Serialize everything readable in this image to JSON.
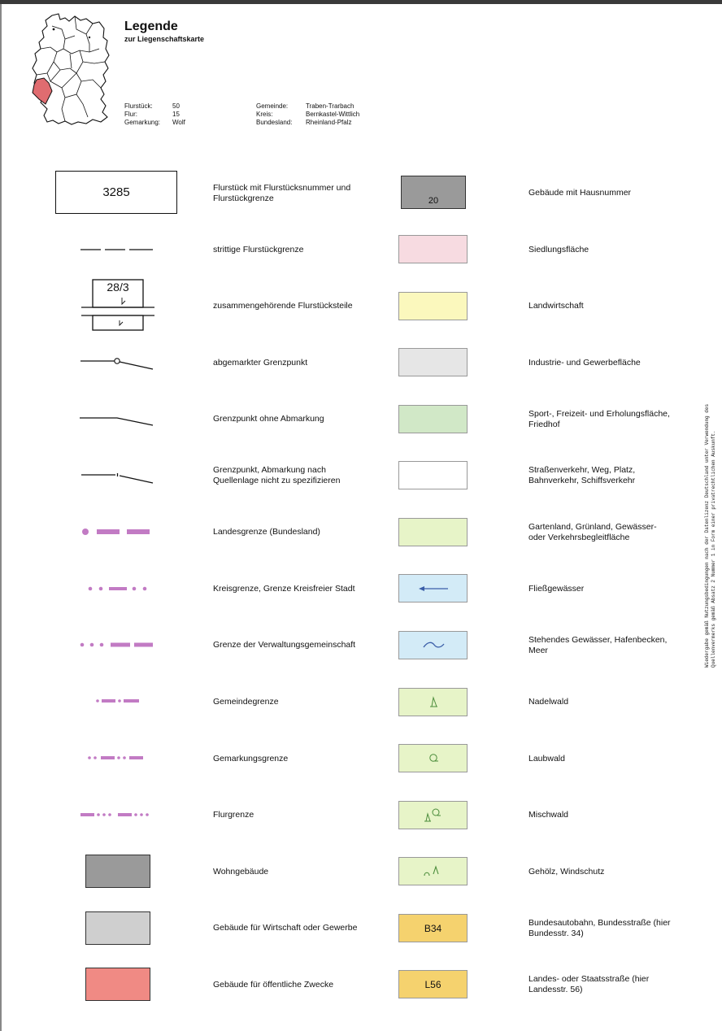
{
  "header": {
    "title": "Legende",
    "subtitle": "zur Liegenschaftskarte",
    "left_meta": [
      {
        "label": "Flurstück:",
        "value": "50"
      },
      {
        "label": "Flur:",
        "value": "15"
      },
      {
        "label": "Gemarkung:",
        "value": "Wolf"
      }
    ],
    "right_meta": [
      {
        "label": "Gemeinde:",
        "value": "Traben-Trarbach"
      },
      {
        "label": "Kreis:",
        "value": "Bernkastel-Wittlich"
      },
      {
        "label": "Bundesland:",
        "value": "Rheinland-Pfalz"
      }
    ]
  },
  "legend_left": [
    {
      "symbol": "parcel-box",
      "symbol_text": "3285",
      "label": "Flurstück mit Flurstücksnummer und Flurstückgrenze"
    },
    {
      "symbol": "disputed-line",
      "label": "strittige Flurstückgrenze"
    },
    {
      "symbol": "combined-parcel",
      "symbol_text": "28/3",
      "label": "zusammengehörende Flurstücksteile"
    },
    {
      "symbol": "marked-point",
      "label": "abgemarkter Grenzpunkt"
    },
    {
      "symbol": "unmarked-point",
      "label": "Grenzpunkt ohne Abmarkung"
    },
    {
      "symbol": "unspecified-point",
      "label": "Grenzpunkt, Abmarkung nach Quellenlage nicht zu spezifizieren"
    },
    {
      "symbol": "state-border",
      "label": "Landesgrenze (Bundesland)"
    },
    {
      "symbol": "district-border",
      "label": "Kreisgrenze, Grenze Kreisfreier Stadt"
    },
    {
      "symbol": "admin-border",
      "label": "Grenze der Verwaltungsgemeinschaft"
    },
    {
      "symbol": "municipal-border",
      "label": "Gemeindegrenze"
    },
    {
      "symbol": "cadastral-border",
      "label": "Gemarkungsgrenze"
    },
    {
      "symbol": "field-border",
      "label": "Flurgrenze"
    },
    {
      "symbol": "residential-building",
      "label": "Wohngebäude"
    },
    {
      "symbol": "commercial-building",
      "label": "Gebäude für Wirtschaft oder Gewerbe"
    },
    {
      "symbol": "public-building",
      "label": "Gebäude für öffentliche Zwecke"
    }
  ],
  "legend_right": [
    {
      "symbol": "building-number",
      "symbol_text": "20",
      "label": "Gebäude mit Hausnummer"
    },
    {
      "symbol": "settlement-area",
      "label": "Siedlungsfläche"
    },
    {
      "symbol": "agriculture",
      "label": "Landwirtschaft"
    },
    {
      "symbol": "industry",
      "label": "Industrie- und Gewerbefläche"
    },
    {
      "symbol": "recreation",
      "label": "Sport-, Freizeit- und Erholungsfläche, Friedhof"
    },
    {
      "symbol": "traffic",
      "label": "Straßenverkehr, Weg, Platz, Bahnverkehr, Schiffsverkehr"
    },
    {
      "symbol": "garden",
      "label": "Gartenland, Grünland, Gewässer- oder Verkehrsbegleitfläche"
    },
    {
      "symbol": "flowing-water",
      "label": "Fließgewässer"
    },
    {
      "symbol": "standing-water",
      "label": "Stehendes Gewässer, Hafenbecken, Meer"
    },
    {
      "symbol": "conifer-forest",
      "label": "Nadelwald"
    },
    {
      "symbol": "deciduous-forest",
      "label": "Laubwald"
    },
    {
      "symbol": "mixed-forest",
      "label": "Mischwald"
    },
    {
      "symbol": "shrubs",
      "label": "Gehölz, Windschutz"
    },
    {
      "symbol": "federal-road",
      "symbol_text": "B34",
      "label": "Bundesautobahn, Bundesstraße (hier Bundesstr. 34)"
    },
    {
      "symbol": "state-road",
      "symbol_text": "L56",
      "label": "Landes- oder Staatsstraße (hier Landesstr. 56)"
    }
  ],
  "side_note": "Wiedergabe gemäß Nutzungsbedingungen nach der Datenlizenz Deutschland unter Verwendung des Quellenvermerks gemäß Absatz 2 Nummer 1 in Form einer privatrechtlichen Auskunft.",
  "colors": {
    "border_violet": "#c27bc4",
    "settlement": "#f7dbe1",
    "agriculture": "#fbf8bd",
    "industry": "#e6e6e6",
    "recreation": "#d1e8c7",
    "garden": "#e7f4c8",
    "water": "#d3ebf7",
    "road": "#f5d26e",
    "state_highlight": "#e06c70"
  }
}
